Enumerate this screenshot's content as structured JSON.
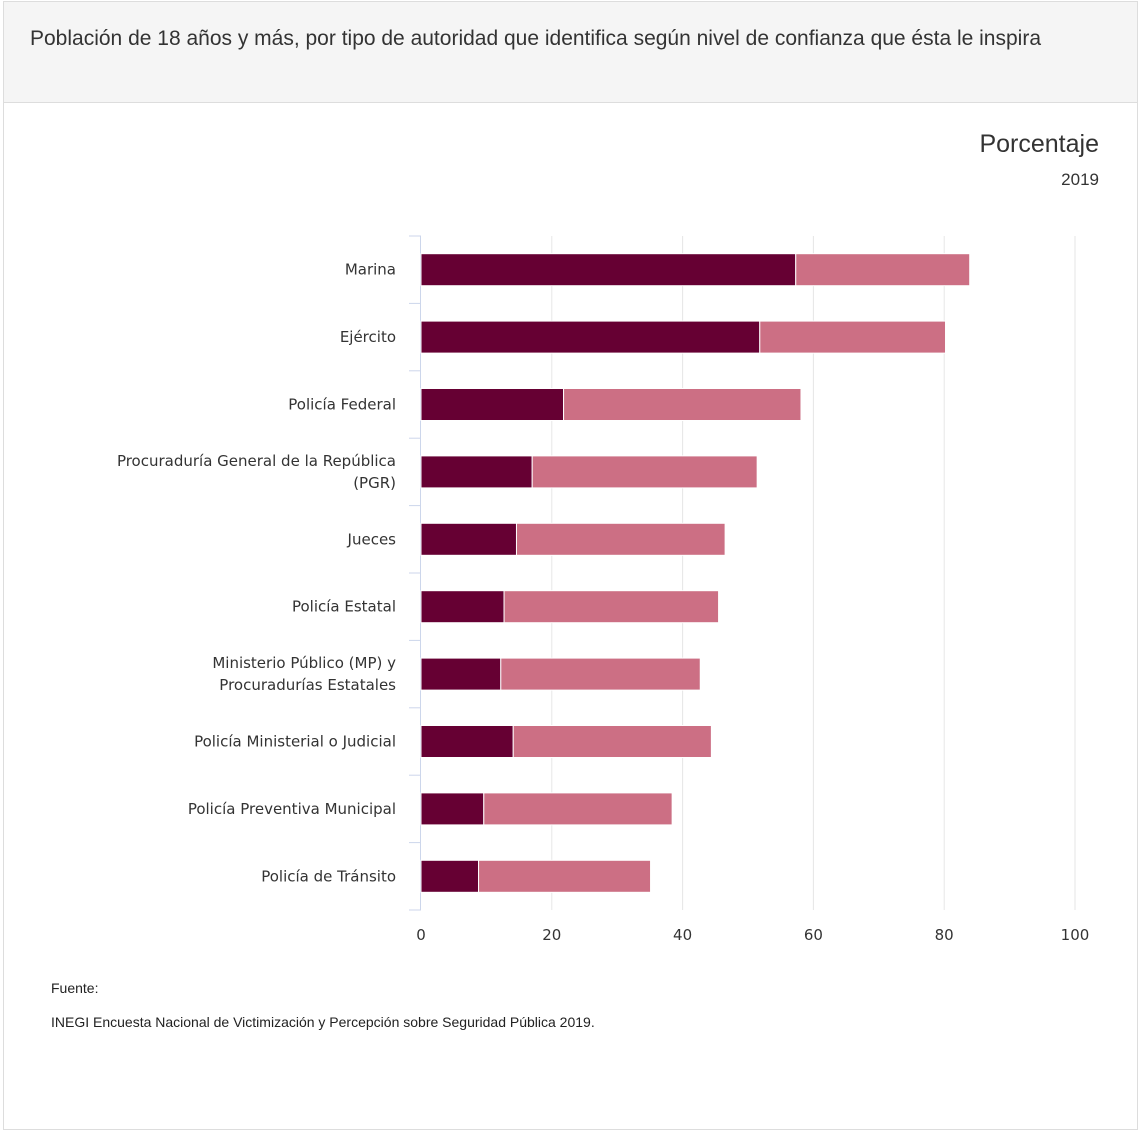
{
  "header": {
    "title": "Población de 18 años y más, por tipo de autoridad que identifica según nivel de confianza que ésta le inspira"
  },
  "chart_data": {
    "type": "bar",
    "orientation": "horizontal",
    "stacked": true,
    "unit_label": "Porcentaje",
    "year_label": "2019",
    "categories": [
      [
        "Marina"
      ],
      [
        "Ejército"
      ],
      [
        "Policía Federal"
      ],
      [
        "Procuraduría General de la República",
        "(PGR)"
      ],
      [
        "Jueces"
      ],
      [
        "Policía Estatal"
      ],
      [
        "Ministerio Público (MP) y",
        "Procuradurías Estatales"
      ],
      [
        "Policía Ministerial o Judicial"
      ],
      [
        "Policía Preventiva Municipal"
      ],
      [
        "Policía de Tránsito"
      ]
    ],
    "series": [
      {
        "color": "#660033",
        "values": [
          57.3,
          51.8,
          21.8,
          17.0,
          14.6,
          12.7,
          12.2,
          14.1,
          9.6,
          8.8
        ]
      },
      {
        "color": "#cc6f84",
        "values": [
          26.6,
          28.4,
          36.3,
          34.4,
          31.9,
          32.8,
          30.5,
          30.3,
          28.8,
          26.3
        ]
      }
    ],
    "xlim": [
      0,
      100
    ],
    "xticks": [
      0,
      20,
      40,
      60,
      80,
      100
    ],
    "grid": true,
    "legend": "none"
  },
  "source": {
    "heading": "Fuente:",
    "text": "INEGI Encuesta Nacional de Victimización y Percepción sobre Seguridad Pública 2019."
  }
}
